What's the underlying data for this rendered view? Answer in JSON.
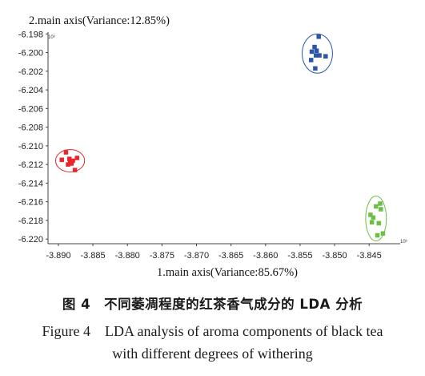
{
  "chart_data": {
    "type": "scatter",
    "title": "",
    "xlabel": "1.main axis(Variance:85.67%)",
    "ylabel": "2.main axis(Variance:12.85%)",
    "x_exponent_label": "10³",
    "y_exponent_label": "10³",
    "xlim": [
      -3.8915,
      -3.8405
    ],
    "ylim": [
      -6.2205,
      -6.1978
    ],
    "x_ticks": [
      -3.89,
      -3.885,
      -3.88,
      -3.875,
      -3.87,
      -3.865,
      -3.86,
      -3.855,
      -3.85,
      -3.845
    ],
    "x_tick_labels": [
      "-3.890",
      "-3.885",
      "-3.880",
      "-3.875",
      "-3.870",
      "-3.865",
      "-3.860",
      "-3.855",
      "-3.850",
      "-3.845"
    ],
    "y_ticks": [
      -6.198,
      -6.2,
      -6.202,
      -6.204,
      -6.206,
      -6.208,
      -6.21,
      -6.212,
      -6.214,
      -6.216,
      -6.218,
      -6.22
    ],
    "y_tick_labels": [
      "-6.198",
      "-6.200",
      "-6.202",
      "-6.204",
      "-6.206",
      "-6.208",
      "-6.210",
      "-6.212",
      "-6.214",
      "-6.216",
      "-6.218",
      "-6.220"
    ],
    "grid": false,
    "series": [
      {
        "color": "#e8262b",
        "points": [
          [
            -3.8889,
            -6.2107
          ],
          [
            -3.8873,
            -6.2113
          ],
          [
            -3.8895,
            -6.2115
          ],
          [
            -3.8884,
            -6.2114
          ],
          [
            -3.8879,
            -6.2116
          ],
          [
            -3.8883,
            -6.2118
          ],
          [
            -3.8881,
            -6.2119
          ],
          [
            -3.8886,
            -6.212
          ],
          [
            -3.8876,
            -6.2126
          ]
        ],
        "ellipse": {
          "cx": -3.8883,
          "cy": -6.2116,
          "rx": 0.0021,
          "ry": 0.0012
        }
      },
      {
        "color": "#2b55a6",
        "points": [
          [
            -3.8523,
            -6.1983
          ],
          [
            -3.8529,
            -6.1994
          ],
          [
            -3.8526,
            -6.1998
          ],
          [
            -3.8533,
            -6.1999
          ],
          [
            -3.8522,
            -6.2003
          ],
          [
            -3.8527,
            -6.2003
          ],
          [
            -3.8513,
            -6.2004
          ],
          [
            -3.8534,
            -6.2008
          ],
          [
            -3.8528,
            -6.2017
          ]
        ],
        "ellipse": {
          "cx": -3.8525,
          "cy": -6.2001,
          "rx": 0.0022,
          "ry": 0.0021
        }
      },
      {
        "color": "#6abf44",
        "points": [
          [
            -3.8434,
            -6.2162
          ],
          [
            -3.844,
            -6.2165
          ],
          [
            -3.8433,
            -6.2168
          ],
          [
            -3.8448,
            -6.2174
          ],
          [
            -3.8444,
            -6.2177
          ],
          [
            -3.8446,
            -6.2182
          ],
          [
            -3.8436,
            -6.2183
          ],
          [
            -3.843,
            -6.2194
          ],
          [
            -3.8438,
            -6.2196
          ]
        ],
        "ellipse": {
          "cx": -3.844,
          "cy": -6.2178,
          "rx": 0.0015,
          "ry": 0.0024
        }
      }
    ]
  },
  "caption": {
    "zh": "图 4　不同萎凋程度的红茶香气成分的 LDA 分析",
    "en_line1": "Figure 4　LDA analysis of aroma components of black tea",
    "en_line2": "with different degrees of withering"
  }
}
